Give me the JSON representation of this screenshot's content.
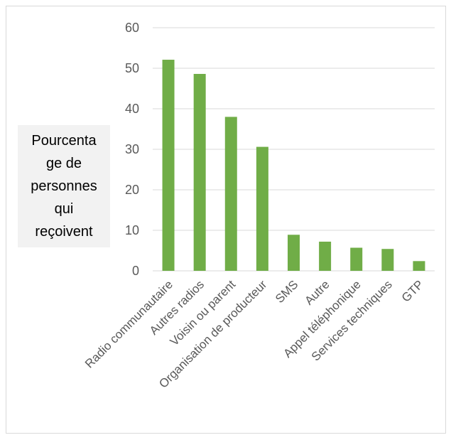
{
  "chart_data": {
    "type": "bar",
    "categories": [
      "Radio communautaire",
      "Autres radios",
      "Voisin ou parent",
      "Organisation de producteur",
      "SMS",
      "Autre",
      "Appel téléphonique",
      "Services techniques",
      "GTP"
    ],
    "values": [
      52.1,
      48.6,
      38.0,
      30.6,
      8.9,
      7.2,
      5.7,
      5.4,
      2.4
    ],
    "ylabel_lines": [
      "Pourcenta",
      "ge de",
      "personnes",
      "qui",
      "reçoivent"
    ],
    "ylim": [
      0,
      60
    ],
    "yticks": [
      0,
      10,
      20,
      30,
      40,
      50,
      60
    ],
    "grid": true,
    "bar_color": "#70ad47",
    "grid_color": "#d9d9d9",
    "text_color": "#595959"
  }
}
